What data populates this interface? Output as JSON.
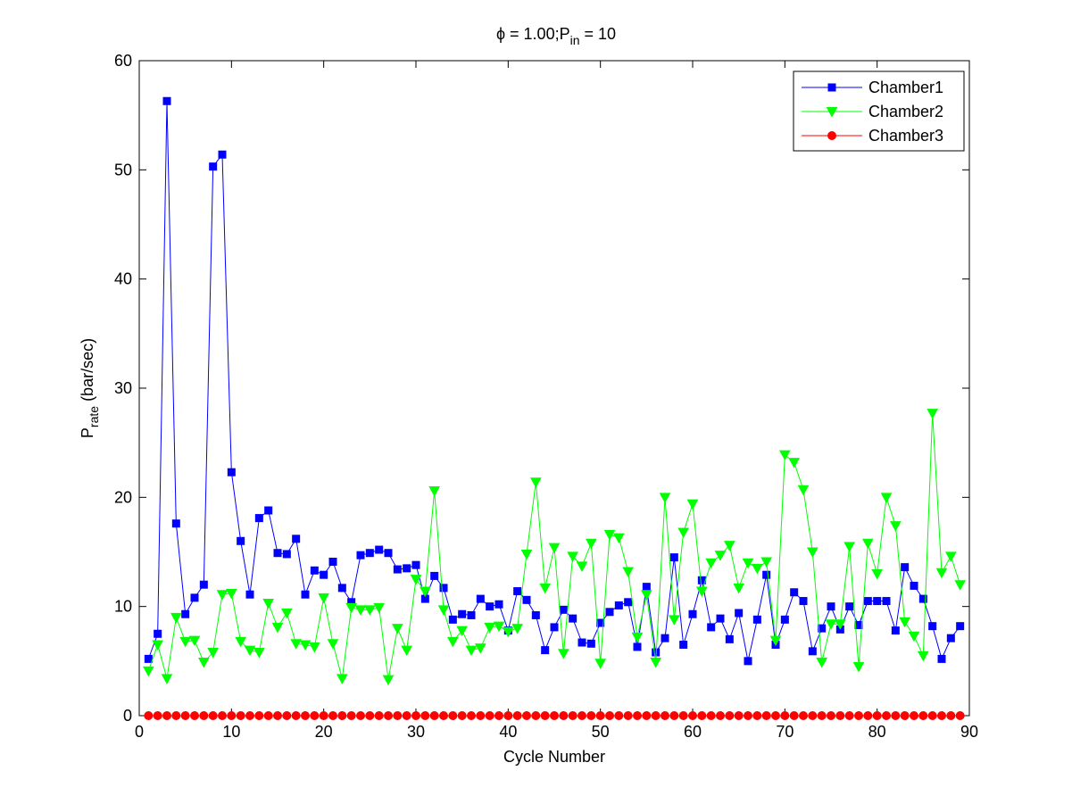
{
  "chart_data": {
    "type": "line",
    "title": {
      "phi_symbol": "ϕ",
      "phi_text": " = 1.00;P",
      "p_sub": "in",
      "p_tail": " = 10"
    },
    "xlabel": "Cycle Number",
    "ylabel": {
      "main": "P",
      "sub": "rate",
      "tail": " (bar/sec)"
    },
    "xlim": [
      0,
      90
    ],
    "ylim": [
      0,
      60
    ],
    "xticks": [
      0,
      10,
      20,
      30,
      40,
      50,
      60,
      70,
      80,
      90
    ],
    "yticks": [
      0,
      10,
      20,
      30,
      40,
      50,
      60
    ],
    "grid": false,
    "legend_position": "top-right",
    "x": [
      1,
      2,
      3,
      4,
      5,
      6,
      7,
      8,
      9,
      10,
      11,
      12,
      13,
      14,
      15,
      16,
      17,
      18,
      19,
      20,
      21,
      22,
      23,
      24,
      25,
      26,
      27,
      28,
      29,
      30,
      31,
      32,
      33,
      34,
      35,
      36,
      37,
      38,
      39,
      40,
      41,
      42,
      43,
      44,
      45,
      46,
      47,
      48,
      49,
      50,
      51,
      52,
      53,
      54,
      55,
      56,
      57,
      58,
      59,
      60,
      61,
      62,
      63,
      64,
      65,
      66,
      67,
      68,
      69,
      70,
      71,
      72,
      73,
      74,
      75,
      76,
      77,
      78,
      79,
      80,
      81,
      82,
      83,
      84,
      85,
      86,
      87,
      88,
      89
    ],
    "series": [
      {
        "name": "Chamber1",
        "color": "#0000ff",
        "marker": "square",
        "values": [
          5.2,
          7.5,
          56.3,
          17.6,
          9.3,
          10.8,
          12.0,
          50.3,
          51.4,
          22.3,
          16.0,
          11.1,
          18.1,
          18.8,
          14.9,
          14.8,
          16.2,
          11.1,
          13.3,
          12.9,
          14.1,
          11.7,
          10.4,
          14.7,
          14.9,
          15.2,
          14.9,
          13.4,
          13.5,
          13.8,
          10.7,
          12.8,
          11.7,
          8.8,
          9.3,
          9.2,
          10.7,
          10.0,
          10.2,
          7.8,
          11.4,
          10.6,
          9.2,
          6.0,
          8.1,
          9.7,
          8.9,
          6.7,
          6.6,
          8.5,
          9.5,
          10.1,
          10.4,
          6.3,
          11.8,
          5.8,
          7.1,
          14.5,
          6.5,
          9.3,
          12.4,
          8.1,
          8.9,
          7.0,
          9.4,
          5.0,
          8.8,
          12.9,
          6.5,
          8.8,
          11.3,
          10.5,
          5.9,
          8.0,
          10.0,
          7.9,
          10.0,
          8.3,
          10.5,
          10.5,
          10.5,
          7.8,
          13.6,
          11.9,
          10.7,
          8.2,
          5.2,
          7.1,
          8.2
        ]
      },
      {
        "name": "Chamber2",
        "color": "#00ff00",
        "marker": "triangle-down",
        "values": [
          4.1,
          6.5,
          3.4,
          9.0,
          6.8,
          6.9,
          4.9,
          5.8,
          11.1,
          11.2,
          6.8,
          6.0,
          5.8,
          10.3,
          8.1,
          9.4,
          6.6,
          6.5,
          6.3,
          10.8,
          6.6,
          3.4,
          9.9,
          9.7,
          9.7,
          9.9,
          3.3,
          8.0,
          6.0,
          12.5,
          11.4,
          20.6,
          9.7,
          6.8,
          7.8,
          6.0,
          6.2,
          8.1,
          8.2,
          7.7,
          8.0,
          14.8,
          21.4,
          11.7,
          15.4,
          5.7,
          14.6,
          13.7,
          15.8,
          4.8,
          16.6,
          16.3,
          13.2,
          7.2,
          11.1,
          4.9,
          20.0,
          8.8,
          16.8,
          19.4,
          11.4,
          14.0,
          14.7,
          15.6,
          11.7,
          14.0,
          13.5,
          14.1,
          6.9,
          23.9,
          23.2,
          20.7,
          15.0,
          4.9,
          8.4,
          8.4,
          15.5,
          4.5,
          15.8,
          13.0,
          20.0,
          17.4,
          8.6,
          7.3,
          5.5,
          27.7,
          13.1,
          14.6,
          12.0
        ]
      },
      {
        "name": "Chamber3",
        "color": "#ff0000",
        "marker": "circle",
        "values": [
          0,
          0,
          0,
          0,
          0,
          0,
          0,
          0,
          0,
          0,
          0,
          0,
          0,
          0,
          0,
          0,
          0,
          0,
          0,
          0,
          0,
          0,
          0,
          0,
          0,
          0,
          0,
          0,
          0,
          0,
          0,
          0,
          0,
          0,
          0,
          0,
          0,
          0,
          0,
          0,
          0,
          0,
          0,
          0,
          0,
          0,
          0,
          0,
          0,
          0,
          0,
          0,
          0,
          0,
          0,
          0,
          0,
          0,
          0,
          0,
          0,
          0,
          0,
          0,
          0,
          0,
          0,
          0,
          0,
          0,
          0,
          0,
          0,
          0,
          0,
          0,
          0,
          0,
          0,
          0,
          0,
          0,
          0,
          0,
          0,
          0,
          0,
          0,
          0
        ]
      }
    ]
  }
}
